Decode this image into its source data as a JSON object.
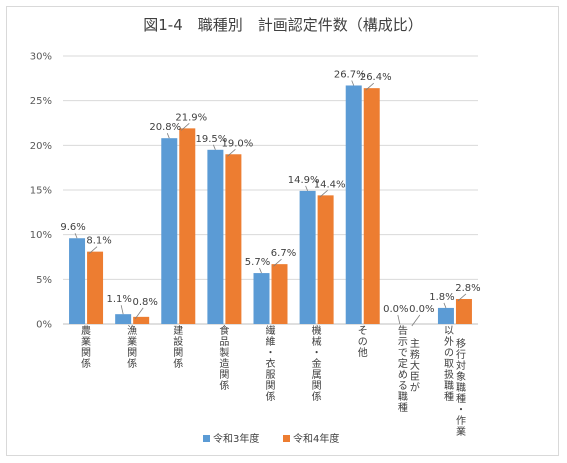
{
  "chart_data": {
    "type": "bar",
    "title": "図1-4　職種別　計画認定件数（構成比）",
    "categories": [
      "農業関係",
      "漁業関係",
      "建設関係",
      "食品製造関係",
      "繊維・衣服関係",
      "機械・金属関係",
      "その他",
      "主務大臣が告示で定める職種",
      "移行対象職種・作業以外の取扱職種"
    ],
    "series": [
      {
        "name": "令和3年度",
        "color": "#5b9bd5",
        "values": [
          9.6,
          1.1,
          20.8,
          19.5,
          5.7,
          14.9,
          26.7,
          0.0,
          1.8
        ],
        "labels": [
          "9.6%",
          "1.1%",
          "20.8%",
          "19.5%",
          "5.7%",
          "14.9%",
          "26.7%",
          "0.0%",
          "1.8%"
        ]
      },
      {
        "name": "令和4年度",
        "color": "#ed7d31",
        "values": [
          8.1,
          0.8,
          21.9,
          19.0,
          6.7,
          14.4,
          26.4,
          0.0,
          2.8
        ],
        "labels": [
          "8.1%",
          "0.8%",
          "21.9%",
          "19.0%",
          "6.7%",
          "14.4%",
          "26.4%",
          "0.0%",
          "2.8%"
        ]
      }
    ],
    "yticks": [
      "0%",
      "5%",
      "10%",
      "15%",
      "20%",
      "25%",
      "30%"
    ],
    "ylim": [
      0,
      30
    ],
    "grid": true,
    "legend": "bottom"
  }
}
